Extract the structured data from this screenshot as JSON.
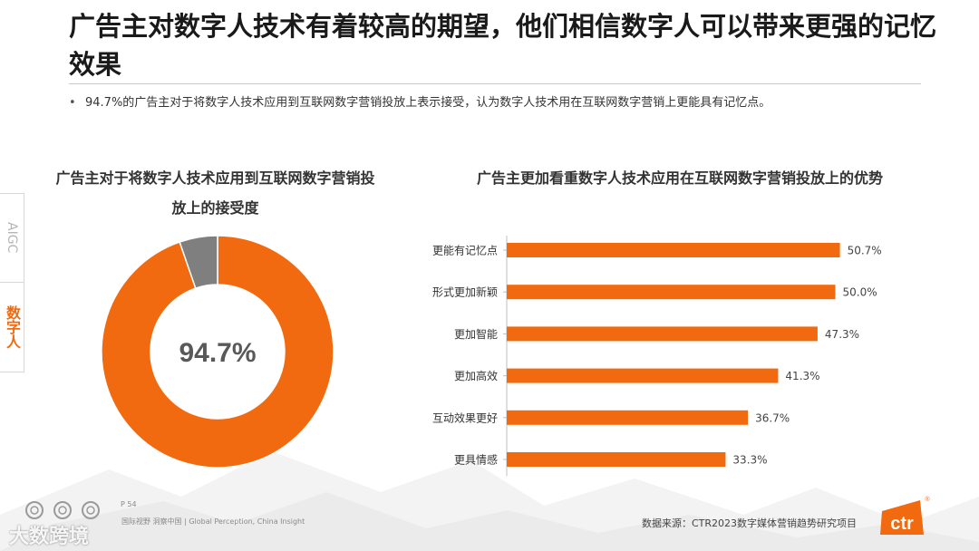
{
  "page": {
    "title": "广告主对数字人技术有着较高的期望，他们相信数字人可以带来更强的记忆效果",
    "bullet": "94.7%的广告主对于将数字人技术应用到互联网数字营销投放上表示接受，认为数字人技术用在互联网数字营销上更能具有记忆点。",
    "bullet_symbol": "•"
  },
  "side_tabs": {
    "aigc": "AIGC",
    "digital_human": "数字人"
  },
  "chart_data": [
    {
      "type": "pie",
      "title": "广告主对于将数字人技术应用到互联网数字营销投放上的接受度",
      "center_label": "94.7%",
      "slices": [
        {
          "value": 94.7,
          "color": "#f26a10"
        },
        {
          "value": 5.3,
          "color": "#7f7f7f"
        }
      ]
    },
    {
      "type": "bar",
      "orientation": "horizontal",
      "title": "广告主更加看重数字人技术应用在互联网数字营销投放上的优势",
      "categories": [
        "更能有记忆点",
        "形式更加新颖",
        "更加智能",
        "更加高效",
        "互动效果更好",
        "更具情感"
      ],
      "values": [
        50.7,
        50.0,
        47.3,
        41.3,
        36.7,
        33.3
      ],
      "value_labels": [
        "50.7%",
        "50.0%",
        "47.3%",
        "41.3%",
        "36.7%",
        "33.3%"
      ],
      "color": "#f26a10"
    }
  ],
  "footer": {
    "page_number": "P 54",
    "tagline": "国际视野 洞察中国 | Global Perception, China Insight",
    "watermark": "大数跨境",
    "source": "数据来源：CTR2023数字媒体营销趋势研究项目",
    "logo_text": "ctr",
    "logo_mark": "®"
  },
  "colors": {
    "accent": "#f26a10",
    "gray": "#7f7f7f"
  }
}
